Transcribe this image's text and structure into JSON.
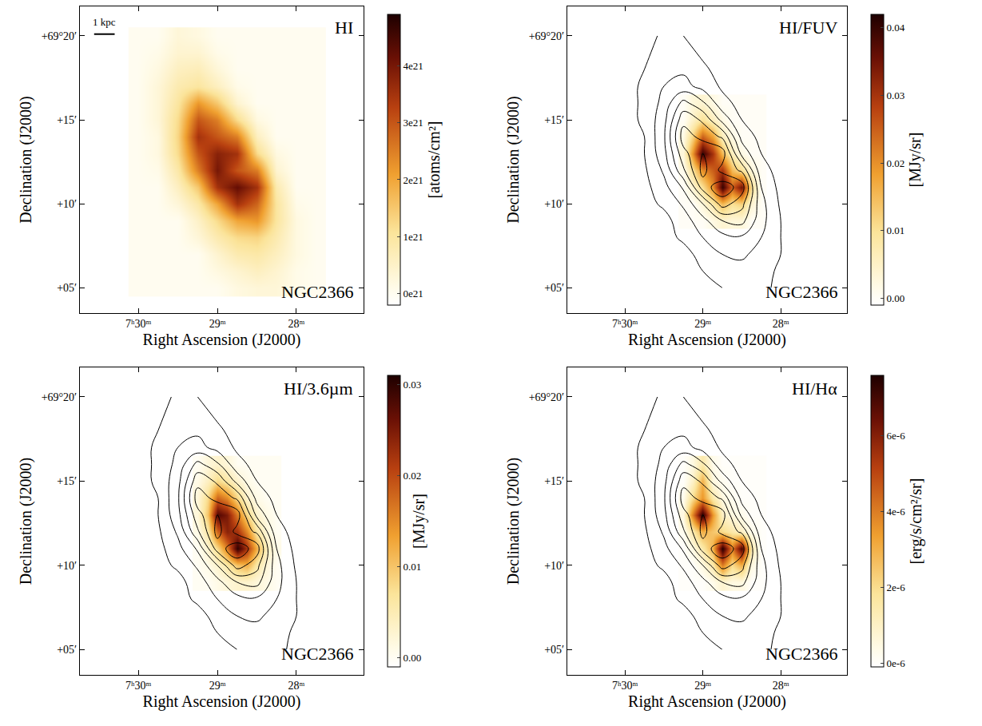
{
  "chart_data": [
    {
      "type": "heatmap",
      "title": "HI",
      "object": "NGC2366",
      "scale_label": "1 kpc",
      "xlabel": "Right Ascension (J2000)",
      "ylabel": "Declination (J2000)",
      "grid": false,
      "xlim": [
        30.74,
        27.15
      ],
      "ylim": [
        3.5,
        21.75
      ],
      "xticks": [
        {
          "value": 30,
          "label": "7ʰ30ᵐ"
        },
        {
          "value": 29,
          "label": "29ᵐ"
        },
        {
          "value": 28,
          "label": "28ᵐ"
        }
      ],
      "yticks": [
        {
          "value": 5,
          "label": "+05′"
        },
        {
          "value": 10,
          "label": "+10′"
        },
        {
          "value": 15,
          "label": "+15′"
        },
        {
          "value": 20,
          "label": "+69°20′"
        }
      ],
      "colorbar_title": "[atoms/cm²]",
      "zlim": [
        -2e+20,
        4.9e+21
      ],
      "zticks": [
        {
          "value": 0,
          "label": "0e21"
        },
        {
          "value": 1e+21,
          "label": "1e21"
        },
        {
          "value": 2e+21,
          "label": "2e21"
        },
        {
          "value": 3e+21,
          "label": "3e21"
        },
        {
          "value": 4e+21,
          "label": "4e21"
        }
      ],
      "x": [
        27.75,
        28.0,
        28.25,
        28.5,
        28.75,
        29.0,
        29.25,
        29.5,
        29.75,
        30.0
      ],
      "y": [
        5,
        6,
        7,
        8,
        9,
        10,
        11,
        12,
        13,
        14,
        15,
        16,
        17,
        18,
        19,
        20
      ],
      "z": [
        [
          0,
          1e+20,
          3e+20,
          3e+20,
          2e+20,
          0,
          0,
          0,
          0,
          0
        ],
        [
          0,
          1e+20,
          4e+20,
          6e+20,
          4e+20,
          2e+20,
          0,
          0,
          0,
          0
        ],
        [
          0,
          2e+20,
          6e+20,
          9e+20,
          8e+20,
          4e+20,
          0,
          0,
          0,
          0
        ],
        [
          0,
          2e+20,
          8e+20,
          1.3e+21,
          1.2e+21,
          8e+20,
          3e+20,
          0,
          0,
          0
        ],
        [
          0,
          2e+20,
          1e+21,
          2.2e+21,
          2e+21,
          1.2e+21,
          5e+20,
          0,
          0,
          0
        ],
        [
          0,
          1e+20,
          1e+21,
          2.8e+21,
          3.5e+21,
          2e+21,
          9e+20,
          3e+20,
          0,
          0
        ],
        [
          0,
          0,
          8e+20,
          3.5e+21,
          4.2e+21,
          3.5e+21,
          1.5e+21,
          6e+20,
          0,
          0
        ],
        [
          0,
          0,
          4e+20,
          2.5e+21,
          3e+21,
          4e+21,
          2.5e+21,
          9e+20,
          1e+20,
          0
        ],
        [
          0,
          0,
          2e+20,
          1.2e+21,
          3.5e+21,
          3.8e+21,
          3e+21,
          1.2e+21,
          2e+20,
          0
        ],
        [
          0,
          0,
          0,
          6e+20,
          2.5e+21,
          3e+21,
          3.5e+21,
          1.3e+21,
          2e+20,
          0
        ],
        [
          0,
          0,
          0,
          2e+20,
          1.2e+21,
          2.5e+21,
          3e+21,
          1.2e+21,
          3e+20,
          0
        ],
        [
          0,
          0,
          0,
          0,
          4e+20,
          1.5e+21,
          2.2e+21,
          1e+21,
          3e+20,
          0
        ],
        [
          0,
          0,
          0,
          0,
          1e+20,
          6e+20,
          1e+21,
          8e+20,
          3e+20,
          0
        ],
        [
          0,
          0,
          0,
          0,
          0,
          3e+20,
          7e+20,
          6e+20,
          2e+20,
          0
        ],
        [
          0,
          0,
          0,
          0,
          0,
          1e+20,
          4e+20,
          4e+20,
          1e+20,
          0
        ],
        [
          0,
          0,
          0,
          0,
          0,
          0,
          2e+20,
          3e+20,
          0,
          0
        ]
      ]
    },
    {
      "type": "heatmap",
      "title": "HI/FUV",
      "object": "NGC2366",
      "xlabel": "Right Ascension (J2000)",
      "ylabel": "Declination (J2000)",
      "grid": false,
      "xlim": [
        30.74,
        27.15
      ],
      "ylim": [
        3.5,
        21.75
      ],
      "xticks": [
        {
          "value": 30,
          "label": "7ʰ30ᵐ"
        },
        {
          "value": 29,
          "label": "29ᵐ"
        },
        {
          "value": 28,
          "label": "28ᵐ"
        }
      ],
      "yticks": [
        {
          "value": 5,
          "label": "+05′"
        },
        {
          "value": 10,
          "label": "+10′"
        },
        {
          "value": 15,
          "label": "+15′"
        },
        {
          "value": 20,
          "label": "+69°20′"
        }
      ],
      "colorbar_title": "[MJy/sr]",
      "zlim": [
        -0.001,
        0.042
      ],
      "zticks": [
        {
          "value": 0,
          "label": "0.00"
        },
        0.01,
        0.02,
        0.03,
        0.04
      ],
      "contour_levels": [
        2e+20,
        8e+20,
        1.4e+21,
        2e+21,
        2.6e+21,
        3.2e+21,
        3.8e+21
      ],
      "x": [
        28.25,
        28.375,
        28.5,
        28.625,
        28.75,
        28.875,
        29.0,
        29.125,
        29.25
      ],
      "y": [
        9,
        10,
        11,
        12,
        13,
        14,
        15,
        16
      ],
      "z": [
        [
          0,
          0,
          0.003,
          0.003,
          0.004,
          0.002,
          0,
          0,
          0
        ],
        [
          0,
          0.004,
          0.012,
          0.01,
          0.015,
          0.008,
          0.003,
          0,
          0
        ],
        [
          0,
          0.01,
          0.035,
          0.025,
          0.04,
          0.02,
          0.01,
          0.004,
          0
        ],
        [
          0,
          0.003,
          0.01,
          0.015,
          0.03,
          0.025,
          0.02,
          0.01,
          0.001
        ],
        [
          0,
          0,
          0.002,
          0.006,
          0.015,
          0.03,
          0.04,
          0.02,
          0.003
        ],
        [
          0,
          0,
          0,
          0.002,
          0.006,
          0.018,
          0.025,
          0.012,
          0.002
        ],
        [
          0,
          0,
          0,
          0,
          0.002,
          0.006,
          0.01,
          0.005,
          0
        ],
        [
          0,
          0,
          0,
          0,
          0,
          0.002,
          0.004,
          0.003,
          0
        ]
      ]
    },
    {
      "type": "heatmap",
      "title": "HI/3.6µm",
      "object": "NGC2366",
      "xlabel": "Right Ascension (J2000)",
      "ylabel": "Declination (J2000)",
      "grid": false,
      "xlim": [
        30.74,
        27.15
      ],
      "ylim": [
        3.5,
        21.75
      ],
      "xticks": [
        {
          "value": 30,
          "label": "7ʰ30ᵐ"
        },
        {
          "value": 29,
          "label": "29ᵐ"
        },
        {
          "value": 28,
          "label": "28ᵐ"
        }
      ],
      "yticks": [
        {
          "value": 5,
          "label": "+05′"
        },
        {
          "value": 10,
          "label": "+10′"
        },
        {
          "value": 15,
          "label": "+15′"
        },
        {
          "value": 20,
          "label": "+69°20′"
        }
      ],
      "colorbar_title": "[MJy/sr]",
      "zlim": [
        -0.001,
        0.031
      ],
      "zticks": [
        {
          "value": 0,
          "label": "0.00"
        },
        0.01,
        0.02,
        0.03
      ],
      "contour_levels": [
        2e+20,
        8e+20,
        1.4e+21,
        2e+21,
        2.6e+21,
        3.2e+21,
        3.8e+21
      ],
      "x": [
        28.25,
        28.375,
        28.5,
        28.625,
        28.75,
        28.875,
        29.0,
        29.125,
        29.25
      ],
      "y": [
        9,
        10,
        11,
        12,
        13,
        14,
        15,
        16
      ],
      "z": [
        [
          0,
          0.001,
          0.002,
          0.003,
          0.003,
          0.002,
          0.001,
          0,
          0
        ],
        [
          0,
          0.002,
          0.006,
          0.012,
          0.01,
          0.006,
          0.003,
          0.001,
          0
        ],
        [
          0.001,
          0.004,
          0.012,
          0.022,
          0.03,
          0.016,
          0.008,
          0.003,
          0
        ],
        [
          0,
          0.002,
          0.006,
          0.015,
          0.022,
          0.024,
          0.018,
          0.006,
          0.001
        ],
        [
          0,
          0.001,
          0.003,
          0.008,
          0.016,
          0.025,
          0.028,
          0.01,
          0.002
        ],
        [
          0,
          0,
          0.001,
          0.003,
          0.008,
          0.015,
          0.018,
          0.008,
          0.002
        ],
        [
          0,
          0,
          0,
          0.001,
          0.003,
          0.006,
          0.008,
          0.004,
          0.001
        ],
        [
          0,
          0,
          0,
          0,
          0,
          0.002,
          0.003,
          0.002,
          0
        ]
      ]
    },
    {
      "type": "heatmap",
      "title": "HI/Hα",
      "object": "NGC2366",
      "xlabel": "Right Ascension (J2000)",
      "ylabel": "Declination (J2000)",
      "grid": false,
      "xlim": [
        30.74,
        27.15
      ],
      "ylim": [
        3.5,
        21.75
      ],
      "xticks": [
        {
          "value": 30,
          "label": "7ʰ30ᵐ"
        },
        {
          "value": 29,
          "label": "29ᵐ"
        },
        {
          "value": 28,
          "label": "28ᵐ"
        }
      ],
      "yticks": [
        {
          "value": 5,
          "label": "+05′"
        },
        {
          "value": 10,
          "label": "+10′"
        },
        {
          "value": 15,
          "label": "+15′"
        },
        {
          "value": 20,
          "label": "+69°20′"
        }
      ],
      "colorbar_title": "[erg/s/cm²/sr]",
      "zlim": [
        -1e-07,
        7.6e-06
      ],
      "zticks": [
        {
          "value": 0,
          "label": "0e-6"
        },
        {
          "value": 2e-06,
          "label": "2e-6"
        },
        {
          "value": 4e-06,
          "label": "4e-6"
        },
        {
          "value": 6e-06,
          "label": "6e-6"
        }
      ],
      "contour_levels": [
        2e+20,
        8e+20,
        1.4e+21,
        2e+21,
        2.6e+21,
        3.2e+21,
        3.8e+21
      ],
      "x": [
        28.25,
        28.375,
        28.5,
        28.625,
        28.75,
        28.875,
        29.0,
        29.125,
        29.25
      ],
      "y": [
        9,
        10,
        11,
        12,
        13,
        14,
        15,
        16
      ],
      "z": [
        [
          0,
          0,
          5e-07,
          5e-07,
          8e-07,
          3e-07,
          0,
          0,
          0
        ],
        [
          0,
          5e-07,
          3e-06,
          2e-06,
          4e-06,
          1.5e-06,
          5e-07,
          0,
          0
        ],
        [
          0,
          1.5e-06,
          7e-06,
          4e-06,
          7.5e-06,
          3e-06,
          1.5e-06,
          5e-07,
          0
        ],
        [
          0,
          3e-07,
          1e-06,
          1.5e-06,
          2e-06,
          2.5e-06,
          3e-06,
          1.5e-06,
          2e-07
        ],
        [
          0,
          0,
          3e-07,
          5e-07,
          1e-06,
          3.5e-06,
          7.5e-06,
          4e-06,
          5e-07
        ],
        [
          0,
          0,
          0,
          2e-07,
          5e-07,
          1.5e-06,
          3.5e-06,
          2e-06,
          3e-07
        ],
        [
          0,
          0,
          0,
          0,
          2e-07,
          5e-07,
          3e-06,
          1e-06,
          0
        ],
        [
          0,
          0,
          0,
          0,
          0,
          3e-07,
          1.5e-06,
          5e-07,
          0
        ]
      ]
    }
  ]
}
